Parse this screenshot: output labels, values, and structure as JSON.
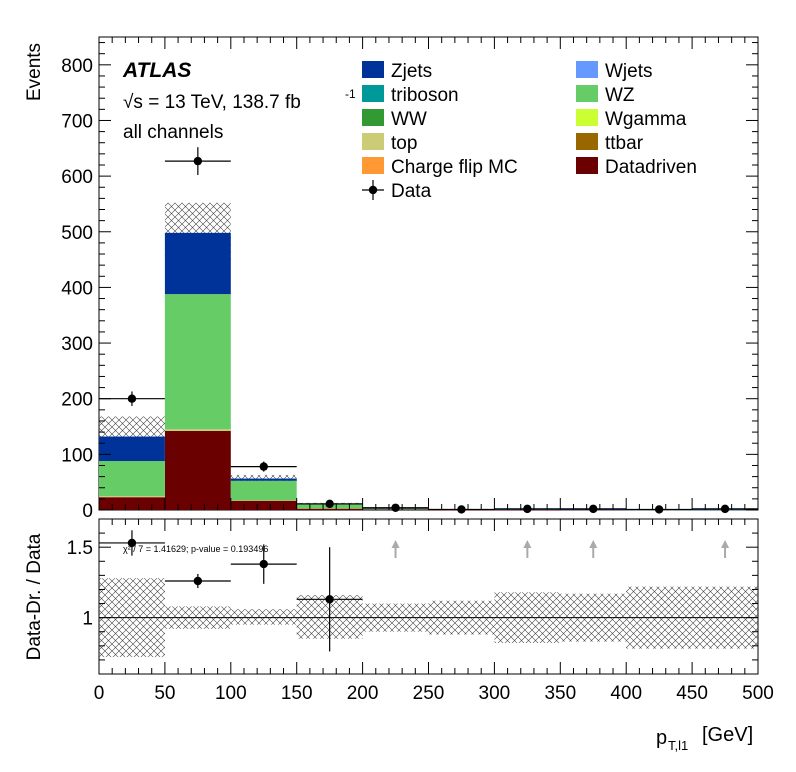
{
  "chart_data": {
    "type": "bar",
    "stacked": true,
    "bin_edges": [
      0,
      50,
      100,
      150,
      200,
      250,
      300,
      350,
      400,
      450,
      500
    ],
    "xlabel_main": "p",
    "xlabel_sub": "T,l1",
    "xlabel_unit": "[GeV]",
    "xlim": [
      0,
      500
    ],
    "xticks": [
      "0",
      "50",
      "100",
      "150",
      "200",
      "250",
      "300",
      "350",
      "400",
      "450",
      "500"
    ],
    "top_panel": {
      "ylabel": "Events",
      "ylim": [
        0,
        850
      ],
      "yticks": [
        "0",
        "100",
        "200",
        "300",
        "400",
        "500",
        "600",
        "700",
        "800"
      ],
      "stack_order": [
        "Datadriven",
        "top",
        "WZ",
        "Zjets"
      ],
      "stacks": [
        {
          "name": "Datadriven",
          "color": "#6b0000",
          "values": [
            23,
            142,
            17,
            3,
            1,
            0.5,
            0.3,
            0.3,
            0.2,
            0.2
          ]
        },
        {
          "name": "top",
          "color": "#cccc77",
          "values": [
            2,
            3,
            0.5,
            0.2,
            0,
            0,
            0,
            0,
            0,
            0
          ]
        },
        {
          "name": "WZ",
          "color": "#66cc66",
          "values": [
            63,
            243,
            35,
            7,
            2,
            1,
            0.8,
            0.6,
            0.4,
            0.4
          ]
        },
        {
          "name": "Zjets",
          "color": "#003399",
          "values": [
            44,
            110,
            4,
            1,
            0.2,
            0.2,
            0.1,
            0.1,
            0.1,
            0.1
          ]
        }
      ],
      "uncertainty_band": {
        "low": [
          98,
          445,
          49,
          9,
          2.5,
          1.3,
          1,
          0.8,
          0.6,
          0.6
        ],
        "high": [
          168,
          552,
          63,
          13,
          4,
          2,
          1.6,
          1.2,
          0.9,
          0.9
        ]
      },
      "data_points": {
        "x": [
          25,
          75,
          125,
          175,
          225,
          275,
          325,
          375,
          425,
          475
        ],
        "y": [
          200,
          627,
          78,
          11,
          4,
          1,
          2,
          2,
          1,
          2
        ],
        "err": [
          13,
          25,
          9,
          3.3,
          2,
          1,
          1.4,
          1.4,
          1,
          1.4
        ]
      }
    },
    "bottom_panel": {
      "ylabel": "Data-Dr. / Data",
      "ylim": [
        0.6,
        1.7
      ],
      "yticks": [
        "1",
        "1.5"
      ],
      "reference_line": 1,
      "ratio_points": {
        "x": [
          25,
          75,
          125,
          175
        ],
        "y": [
          1.53,
          1.26,
          1.38,
          1.13
        ],
        "yerr": [
          0.09,
          0.05,
          0.14,
          0.37
        ],
        "xerr": 25
      },
      "band": {
        "low": [
          0.72,
          0.92,
          0.95,
          0.85,
          0.9,
          0.88,
          0.82,
          0.83,
          0.78,
          0.78
        ],
        "high": [
          1.28,
          1.08,
          1.06,
          1.16,
          1.1,
          1.12,
          1.18,
          1.17,
          1.22,
          1.22
        ]
      },
      "offscale_arrows": [
        225,
        325,
        375,
        475
      ],
      "annotation": "χ² / 7 = 1.41629; p-value = 0.193496"
    },
    "atlas_label": {
      "name": "ATLAS",
      "energy": "√s = 13 TeV, 138.7 fb",
      "lumi_exponent": "-1",
      "channel": "all channels"
    },
    "legend": [
      {
        "name": "Zjets",
        "color": "#003399",
        "kind": "box"
      },
      {
        "name": "Wjets",
        "color": "#6699ff",
        "kind": "box"
      },
      {
        "name": "triboson",
        "color": "#009999",
        "kind": "box"
      },
      {
        "name": "WZ",
        "color": "#66cc66",
        "kind": "box"
      },
      {
        "name": "WW",
        "color": "#339933",
        "kind": "box"
      },
      {
        "name": "Wgamma",
        "color": "#ccff33",
        "kind": "box"
      },
      {
        "name": "top",
        "color": "#cccc77",
        "kind": "box"
      },
      {
        "name": "ttbar",
        "color": "#996600",
        "kind": "box"
      },
      {
        "name": "Charge flip MC",
        "color": "#ff9933",
        "kind": "box"
      },
      {
        "name": "Datadriven",
        "color": "#6b0000",
        "kind": "box"
      },
      {
        "name": "Data",
        "color": "#000000",
        "kind": "marker"
      }
    ]
  }
}
